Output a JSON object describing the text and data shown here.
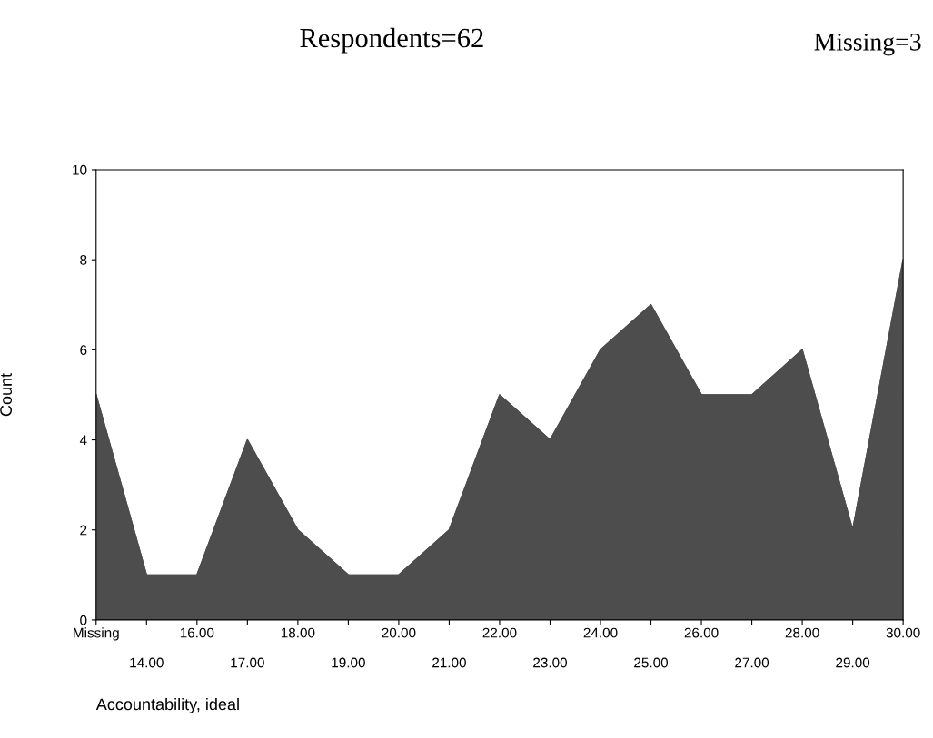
{
  "chart_data": {
    "type": "area",
    "title": "Respondents=62",
    "annotations": [
      "Missing=3"
    ],
    "xlabel": "Accountability, ideal",
    "ylabel": "Count",
    "categories": [
      "Missing",
      "14.00",
      "16.00",
      "17.00",
      "18.00",
      "19.00",
      "20.00",
      "21.00",
      "22.00",
      "23.00",
      "24.00",
      "25.00",
      "26.00",
      "27.00",
      "28.00",
      "29.00",
      "30.00"
    ],
    "values": [
      5,
      1,
      1,
      4,
      2,
      1,
      1,
      2,
      5,
      4,
      6,
      7,
      5,
      5,
      6,
      2,
      8
    ],
    "color": "#4d4d4d",
    "ylim": [
      0,
      10
    ],
    "yticks": [
      0,
      2,
      4,
      6,
      8,
      10
    ],
    "grid": false
  }
}
